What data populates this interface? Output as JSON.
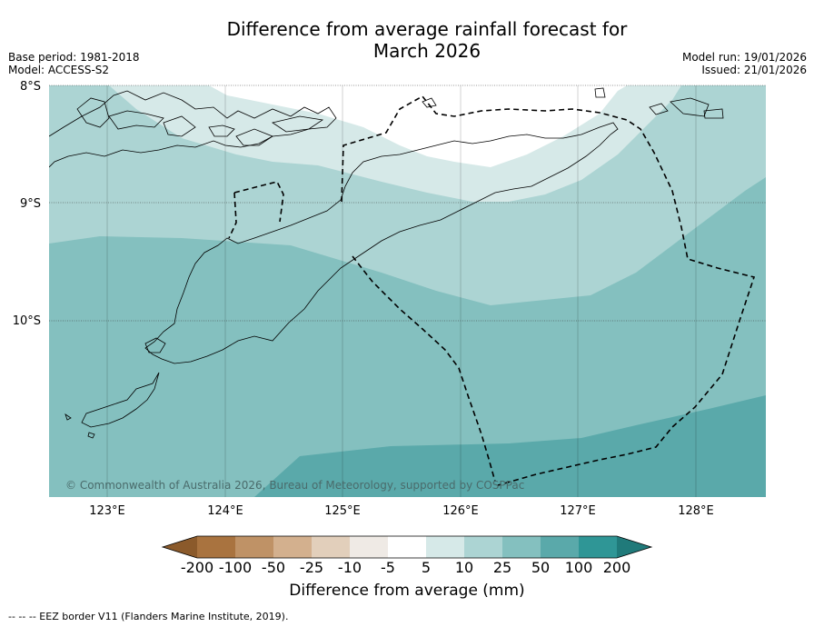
{
  "title": {
    "line1": "Difference from average rainfall forecast for",
    "line2": "March 2026"
  },
  "meta": {
    "base_period": "Base period: 1981-2018",
    "model": "Model: ACCESS-S2",
    "model_run": "Model run: 19/01/2026",
    "issued": "Issued: 21/01/2026"
  },
  "map": {
    "lat_labels": [
      "8°S",
      "9°S",
      "10°S"
    ],
    "lon_labels": [
      "123°E",
      "124°E",
      "125°E",
      "126°E",
      "127°E",
      "128°E"
    ],
    "copyright": "© Commonwealth of Australia 2026, Bureau of Meteorology, supported by COSPPac"
  },
  "colorbar": {
    "tick_labels": [
      "-200",
      "-100",
      "-50",
      "-25",
      "-10",
      "-5",
      "5",
      "10",
      "25",
      "50",
      "100",
      "200"
    ],
    "colors": {
      "lt_-200": "#8b5a2b",
      "-200_-100": "#a9733f",
      "-100_-50": "#bf9266",
      "-50_-25": "#d3b08e",
      "-25_-10": "#e2cfbb",
      "-10_-5": "#efeae5",
      "-5_5": "#ffffff",
      "5_10": "#d6e9e8",
      "10_25": "#acd4d3",
      "25_50": "#84c0bf",
      "50_100": "#5aa9aa",
      "100_200": "#2f9696",
      "gt_200": "#207a7a"
    },
    "label": "Difference from average (mm)"
  },
  "footer": {
    "legend": "--  --  -- EEZ border V11 (Flanders Marine Institute, 2019)."
  }
}
